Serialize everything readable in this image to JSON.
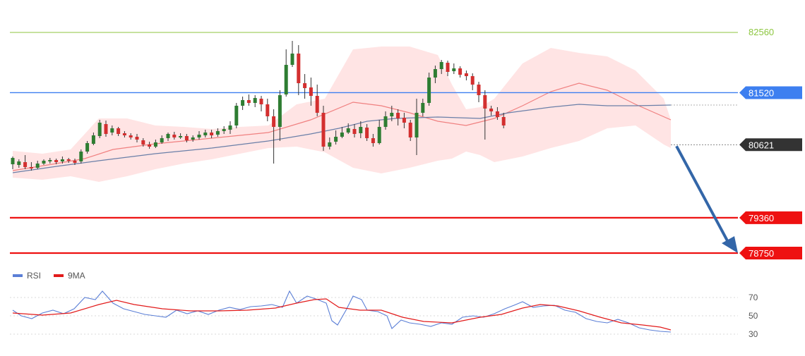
{
  "chart_data": [
    {
      "type": "candlestick",
      "grid": false,
      "price_axis_position": "right",
      "levels": [
        {
          "value": 82560,
          "label": "82560",
          "color": "#8cc63f",
          "style": "line-top"
        },
        {
          "value": 81520,
          "label": "81520",
          "color": "#3d7ff0",
          "style": "tag"
        },
        {
          "value": 80621,
          "label": "80621",
          "color": "#333333",
          "style": "tag"
        },
        {
          "value": 79360,
          "label": "79360",
          "color": "#ee1111",
          "style": "tag"
        },
        {
          "value": 78750,
          "label": "78750",
          "color": "#ee1111",
          "style": "tag"
        }
      ],
      "projection": {
        "from": 80621,
        "to": 78750,
        "direction": "down",
        "color": "#3366a8"
      },
      "colors": {
        "up": "#2e7d32",
        "down": "#d32f2f",
        "band": "#ffb3b3",
        "ma_fast": "#f08080",
        "ma_slow": "#6a7fa8"
      }
    },
    {
      "type": "line",
      "legend_position": "top-left",
      "series": [
        {
          "name": "RSI",
          "color": "#5b7fd6"
        },
        {
          "name": "9MA",
          "color": "#e21b1b"
        }
      ],
      "y_ticks": [
        "70",
        "50",
        "30"
      ],
      "ylim": [
        30,
        70
      ]
    }
  ]
}
